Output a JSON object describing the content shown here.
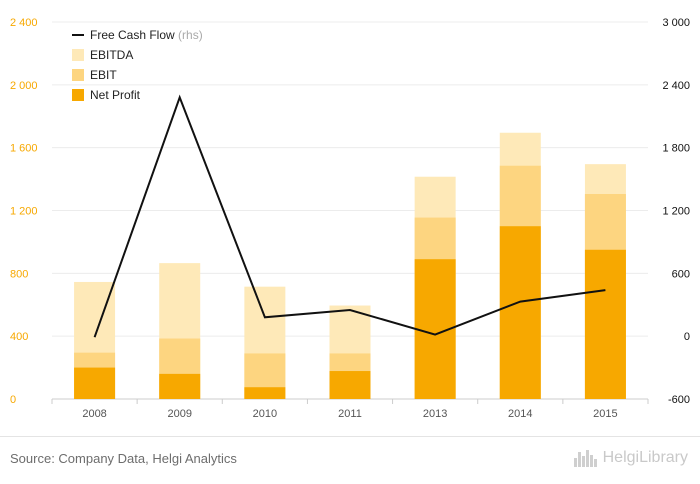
{
  "chart_data": {
    "type": "bar",
    "categories": [
      "2008",
      "2009",
      "2010",
      "2011",
      "2013",
      "2014",
      "2015"
    ],
    "stacked_bars": true,
    "series": [
      {
        "name": "Net Profit",
        "type": "bar",
        "axis": "left",
        "color": "#f7a800",
        "values": [
          200,
          160,
          75,
          178,
          890,
          1100,
          950
        ]
      },
      {
        "name": "EBIT",
        "type": "bar",
        "axis": "left",
        "color": "#fdd580",
        "values": [
          295,
          385,
          290,
          290,
          1155,
          1485,
          1305
        ]
      },
      {
        "name": "EBITDA",
        "type": "bar",
        "axis": "left",
        "color": "#fee9b8",
        "values": [
          745,
          865,
          715,
          595,
          1415,
          1695,
          1495
        ]
      },
      {
        "name": "Free Cash Flow",
        "legend_suffix": "(rhs)",
        "type": "line",
        "axis": "right",
        "color": "#111111",
        "values": [
          -10,
          2280,
          180,
          250,
          15,
          330,
          440
        ]
      }
    ],
    "y_left": {
      "min": 0,
      "max": 2400,
      "ticks": [
        0,
        400,
        800,
        1200,
        1600,
        2000,
        2400
      ],
      "tick_labels": [
        "0",
        "400",
        "800",
        "1 200",
        "1 600",
        "2 000",
        "2 400"
      ],
      "color": "#f7a800"
    },
    "y_right": {
      "min": -600,
      "max": 3000,
      "ticks": [
        -600,
        0,
        600,
        1200,
        1800,
        2400,
        3000
      ],
      "tick_labels": [
        "-600",
        "0",
        "600",
        "1 200",
        "1 800",
        "2 400",
        "3 000"
      ],
      "color": "#111111"
    },
    "grid": "horizontal",
    "legend_position": "top-left"
  },
  "legend": [
    {
      "label": "Free Cash Flow",
      "suffix": "(rhs)",
      "kind": "line",
      "color": "#111111"
    },
    {
      "label": "EBITDA",
      "suffix": "",
      "kind": "box",
      "color": "#fee9b8"
    },
    {
      "label": "EBIT",
      "suffix": "",
      "kind": "box",
      "color": "#fdd580"
    },
    {
      "label": "Net Profit",
      "suffix": "",
      "kind": "box",
      "color": "#f7a800"
    }
  ],
  "footer": {
    "source": "Source: Company Data, Helgi Analytics",
    "brand": "HelgiLibrary"
  }
}
